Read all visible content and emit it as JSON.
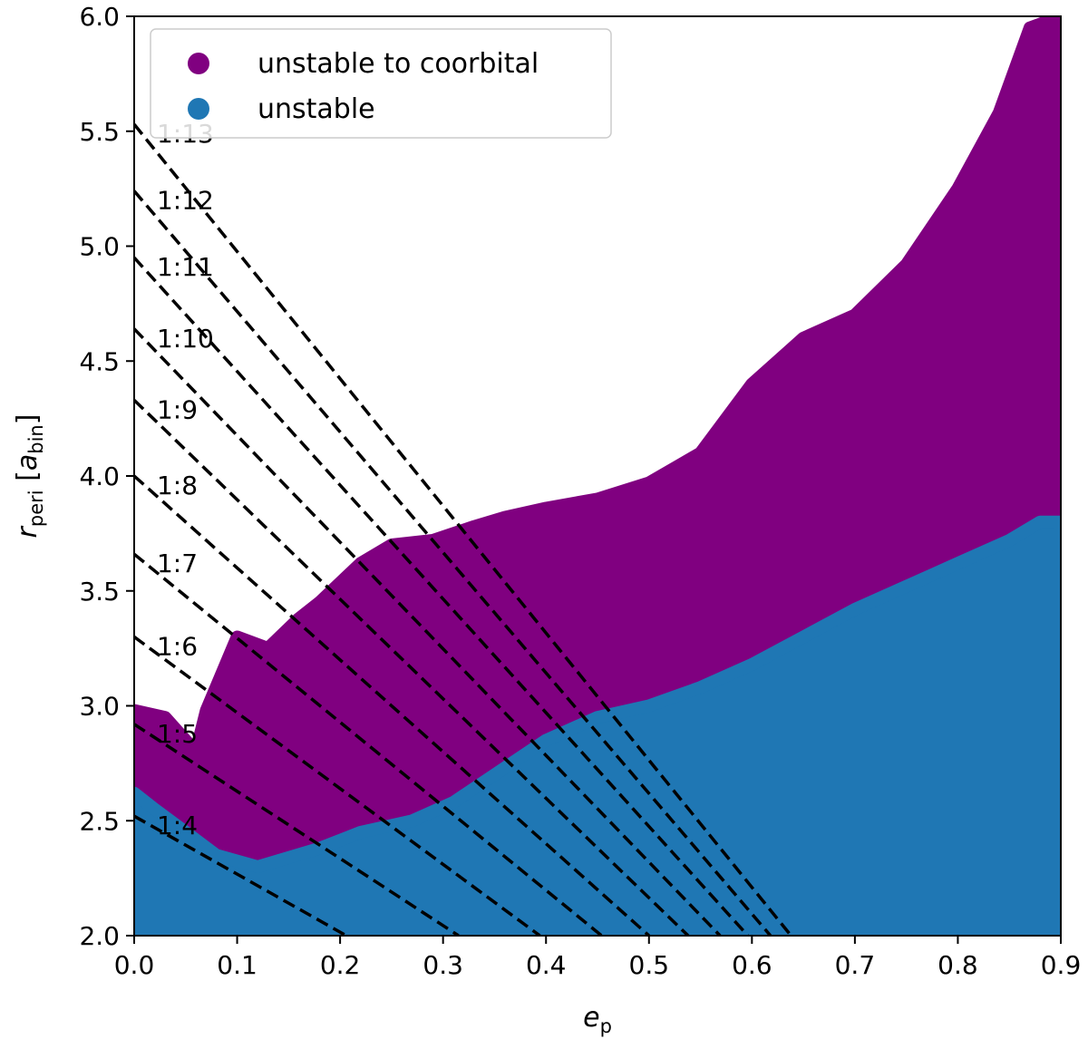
{
  "chart_data": {
    "type": "scatter",
    "xlabel": "e_p",
    "ylabel": "r_peri [a_bin]",
    "xlim": [
      0.0,
      0.9
    ],
    "ylim": [
      2.0,
      6.0
    ],
    "xticks": [
      "0.0",
      "0.1",
      "0.2",
      "0.3",
      "0.4",
      "0.5",
      "0.6",
      "0.7",
      "0.8",
      "0.9"
    ],
    "yticks": [
      "2.0",
      "2.5",
      "3.0",
      "3.5",
      "4.0",
      "4.5",
      "5.0",
      "5.5",
      "6.0"
    ],
    "legend": {
      "placement": "top-left",
      "entries": [
        {
          "label": "unstable to coorbital",
          "color": "#800080"
        },
        {
          "label": "unstable",
          "color": "#1f77b4"
        }
      ]
    },
    "series": [
      {
        "name": "unstable to coorbital",
        "color": "#800080",
        "region_boundary": [
          [
            0.0,
            2.45
          ],
          [
            0.0,
            2.98
          ],
          [
            0.03,
            2.95
          ],
          [
            0.06,
            2.8
          ],
          [
            0.07,
            2.98
          ],
          [
            0.1,
            3.3
          ],
          [
            0.13,
            3.25
          ],
          [
            0.16,
            3.38
          ],
          [
            0.18,
            3.45
          ],
          [
            0.22,
            3.62
          ],
          [
            0.25,
            3.7
          ],
          [
            0.29,
            3.72
          ],
          [
            0.33,
            3.78
          ],
          [
            0.36,
            3.82
          ],
          [
            0.4,
            3.86
          ],
          [
            0.45,
            3.9
          ],
          [
            0.5,
            3.97
          ],
          [
            0.55,
            4.1
          ],
          [
            0.6,
            4.4
          ],
          [
            0.65,
            4.6
          ],
          [
            0.7,
            4.7
          ],
          [
            0.75,
            4.92
          ],
          [
            0.8,
            5.25
          ],
          [
            0.84,
            5.58
          ],
          [
            0.87,
            5.95
          ],
          [
            0.9,
            6.0
          ],
          [
            0.9,
            2.0
          ],
          [
            0.3,
            2.0
          ],
          [
            0.16,
            2.08
          ],
          [
            0.1,
            2.2
          ],
          [
            0.05,
            2.3
          ],
          [
            0.0,
            2.3
          ]
        ]
      },
      {
        "name": "unstable",
        "color": "#1f77b4",
        "region_boundary": [
          [
            0.0,
            2.0
          ],
          [
            0.0,
            2.62
          ],
          [
            0.02,
            2.55
          ],
          [
            0.05,
            2.45
          ],
          [
            0.08,
            2.35
          ],
          [
            0.12,
            2.3
          ],
          [
            0.18,
            2.38
          ],
          [
            0.22,
            2.45
          ],
          [
            0.27,
            2.5
          ],
          [
            0.31,
            2.58
          ],
          [
            0.35,
            2.7
          ],
          [
            0.4,
            2.85
          ],
          [
            0.45,
            2.95
          ],
          [
            0.5,
            3.0
          ],
          [
            0.55,
            3.08
          ],
          [
            0.6,
            3.18
          ],
          [
            0.65,
            3.3
          ],
          [
            0.7,
            3.42
          ],
          [
            0.75,
            3.52
          ],
          [
            0.8,
            3.62
          ],
          [
            0.85,
            3.72
          ],
          [
            0.88,
            3.8
          ],
          [
            0.9,
            3.8
          ],
          [
            0.9,
            2.0
          ]
        ]
      }
    ],
    "resonance_lines": [
      {
        "label": "1:4",
        "y0": 2.52,
        "x_end": 0.206
      },
      {
        "label": "1:5",
        "y0": 2.92,
        "x_end": 0.315
      },
      {
        "label": "1:6",
        "y0": 3.3,
        "x_end": 0.394
      },
      {
        "label": "1:7",
        "y0": 3.66,
        "x_end": 0.454
      },
      {
        "label": "1:8",
        "y0": 4.0,
        "x_end": 0.5
      },
      {
        "label": "1:9",
        "y0": 4.33,
        "x_end": 0.538
      },
      {
        "label": "1:10",
        "y0": 4.64,
        "x_end": 0.569
      },
      {
        "label": "1:11",
        "y0": 4.95,
        "x_end": 0.596
      },
      {
        "label": "1:12",
        "y0": 5.24,
        "x_end": 0.618
      },
      {
        "label": "1:13",
        "y0": 5.53,
        "x_end": 0.638
      }
    ]
  }
}
